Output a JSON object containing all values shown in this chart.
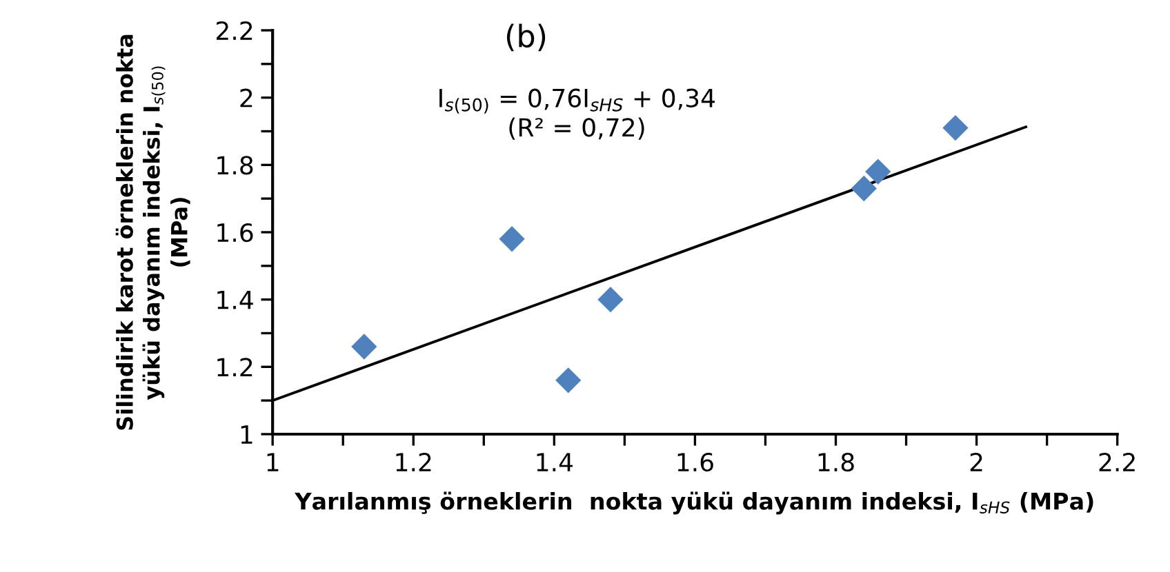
{
  "chart_data": {
    "type": "scatter",
    "title": "(b)",
    "xlabel": "Yarılanmış örneklerin  nokta yükü dayanım indeksi, I$_{sHS}$ (MPa)",
    "ylabel": "Silindirik karot örneklerin nokta\nyükü dayanım indeksi, I$_{s(50)}$\n(MPa)",
    "annotations": [
      "I$_{s(50)}$ = 0,76I$_{sHS}$ + 0,34\n(R² = 0,72)"
    ],
    "x": [
      1.13,
      1.34,
      1.42,
      1.48,
      1.84,
      1.86,
      1.97
    ],
    "series": [
      {
        "color": "#4f81bd",
        "marker": "diamond",
        "values": [
          1.26,
          1.58,
          1.16,
          1.4,
          1.73,
          1.78,
          1.91
        ]
      },
      {
        "type": "line",
        "color": "#000000",
        "x": [
          1.0,
          2.07
        ],
        "values": [
          1.1,
          1.913
        ],
        "line_style": "solid"
      }
    ],
    "xlim": [
      1,
      2.2
    ],
    "ylim": [
      1,
      2.2
    ],
    "xticks": [
      1,
      {
        "value": 1.1,
        "label": null
      },
      1.2,
      {
        "value": 1.3,
        "label": null
      },
      1.4,
      {
        "value": 1.5,
        "label": null
      },
      1.6,
      {
        "value": 1.7,
        "label": null
      },
      1.8,
      {
        "value": 1.9,
        "label": null
      },
      2,
      {
        "value": 2.1,
        "label": null
      },
      2.2
    ],
    "yticks": [
      1,
      {
        "value": 1.1,
        "label": null
      },
      1.2,
      {
        "value": 1.3,
        "label": null
      },
      1.4,
      {
        "value": 1.5,
        "label": null
      },
      1.6,
      {
        "value": 1.7,
        "label": null
      },
      1.8,
      {
        "value": 1.9,
        "label": null
      },
      2,
      {
        "value": 2.1,
        "label": null
      },
      2.2
    ],
    "grid": false,
    "legend": false
  }
}
